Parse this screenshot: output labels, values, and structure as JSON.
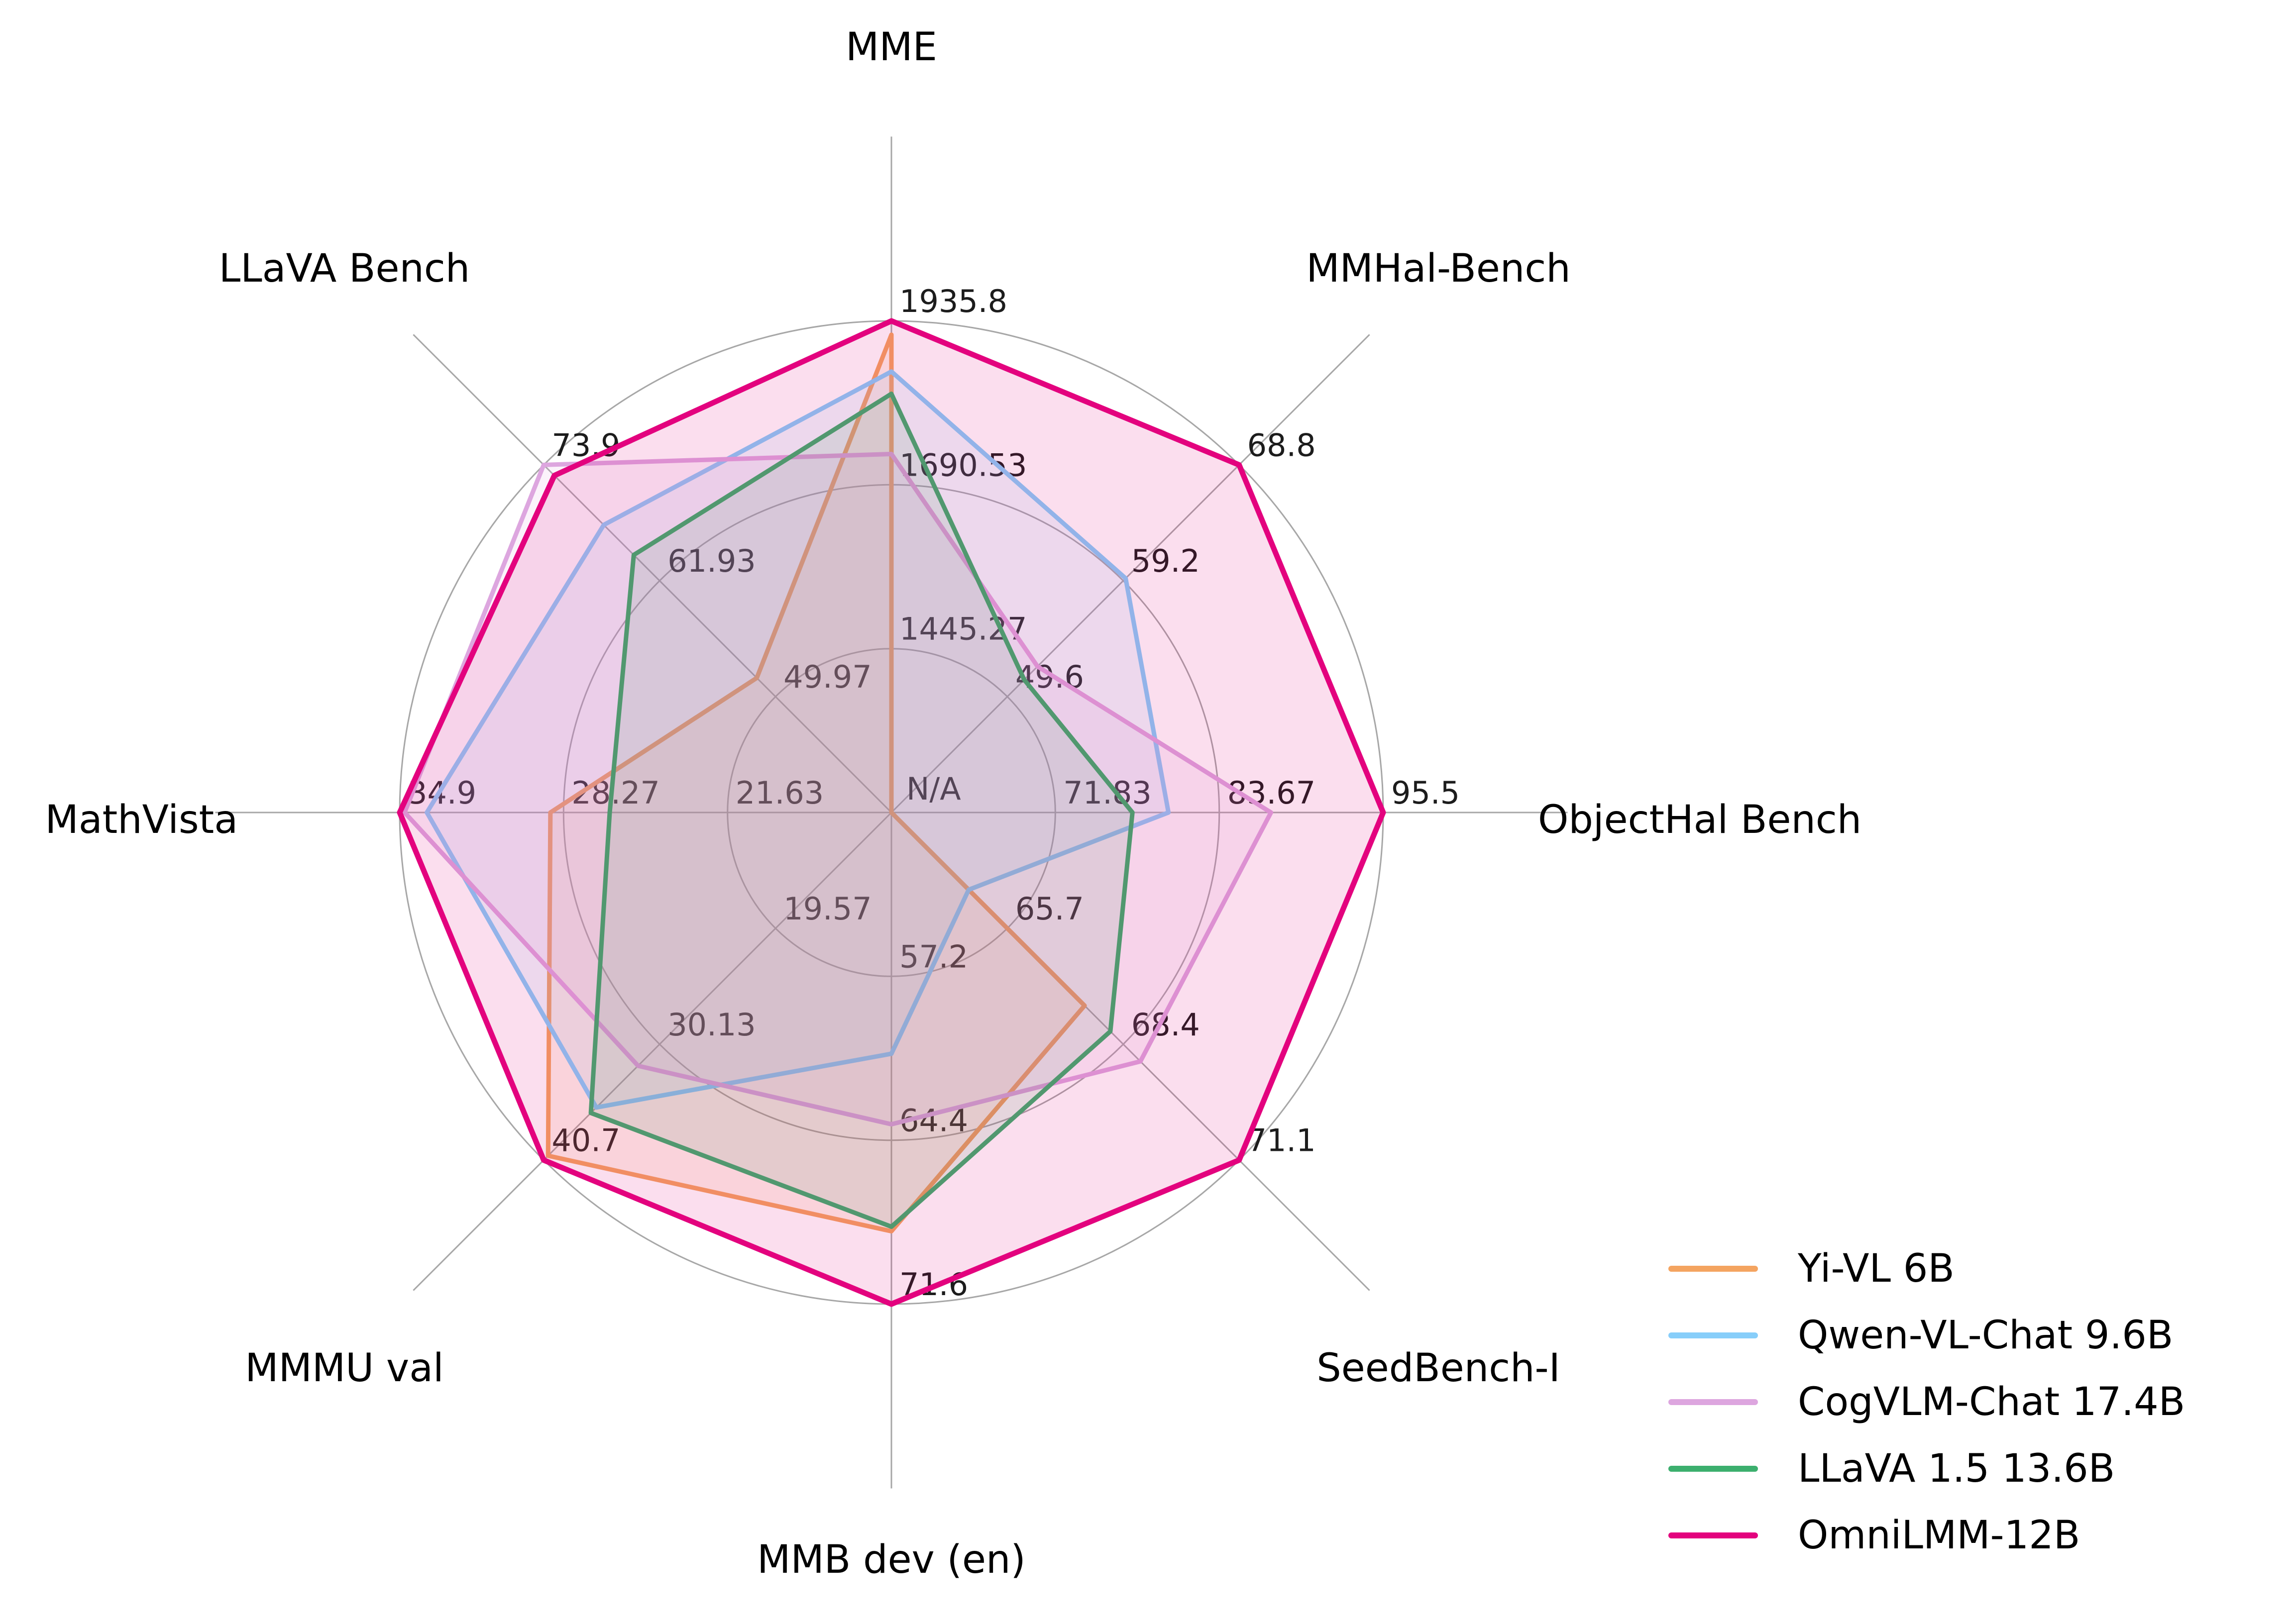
{
  "figure": {
    "background": "#ffffff",
    "grid_color": "#A7A7A7",
    "tick_label_color": "#1C1C1C",
    "category_label_color": "#000000"
  },
  "chart_data": {
    "type": "radar",
    "title": "",
    "center_label": "N/A",
    "grid": {
      "rings": 3,
      "ring_fractions": [
        0.3333,
        0.6667,
        1.0
      ],
      "spoke_extent": 1.375,
      "grid_on": true
    },
    "legend_position": "lower right",
    "axes": [
      {
        "label": "MME",
        "min": 1200,
        "max": 1935.8,
        "ticks": [
          1445.27,
          1690.53,
          1935.8
        ]
      },
      {
        "label": "MMHal-Bench",
        "min": 40,
        "max": 68.8,
        "ticks": [
          49.6,
          59.2,
          68.8
        ]
      },
      {
        "label": "ObjectHal Bench",
        "min": 60,
        "max": 95.5,
        "ticks": [
          71.83,
          83.67,
          95.5
        ]
      },
      {
        "label": "SeedBench-I",
        "min": 63,
        "max": 71.1,
        "ticks": [
          65.7,
          68.4,
          71.1
        ]
      },
      {
        "label": "MMB dev (en)",
        "min": 50,
        "max": 71.6,
        "ticks": [
          57.2,
          64.4,
          71.6
        ]
      },
      {
        "label": "MMMU val",
        "min": 9,
        "max": 40.7,
        "ticks": [
          19.57,
          30.13,
          40.7
        ]
      },
      {
        "label": "MathVista",
        "min": 15,
        "max": 34.9,
        "ticks": [
          21.63,
          28.27,
          34.9
        ]
      },
      {
        "label": "LLaVA Bench",
        "min": 38,
        "max": 73.9,
        "ticks": [
          49.97,
          61.93,
          73.9
        ]
      }
    ],
    "series": [
      {
        "name": "Yi-VL 6B",
        "color": "#F4A460",
        "line_width": 9,
        "values": [
          1915.1,
          null,
          null,
          67.5,
          68.4,
          40.3,
          28.8,
          51.9
        ]
      },
      {
        "name": "Qwen-VL-Chat 9.6B",
        "color": "#87CEFA",
        "line_width": 9,
        "values": [
          1860.0,
          59.4,
          80.0,
          64.8,
          60.6,
          35.9,
          33.8,
          67.7
        ]
      },
      {
        "name": "CogVLM-Chat 17.4B",
        "color": "#DDA6DF",
        "line_width": 9,
        "values": [
          1736.6,
          52.1,
          87.4,
          68.8,
          63.7,
          32.1,
          34.7,
          73.9
        ]
      },
      {
        "name": "LLaVA 1.5 13.6B",
        "color": "#3CAF6E",
        "line_width": 9,
        "values": [
          1826.7,
          51.0,
          77.4,
          68.1,
          68.2,
          36.4,
          26.4,
          64.6
        ]
      },
      {
        "name": "OmniLMM-12B",
        "color": "#E3027E",
        "line_width": 11,
        "values": [
          1935.8,
          68.8,
          95.5,
          71.1,
          71.6,
          40.7,
          34.9,
          72.8
        ]
      }
    ],
    "null_policy": "plotted at center"
  }
}
